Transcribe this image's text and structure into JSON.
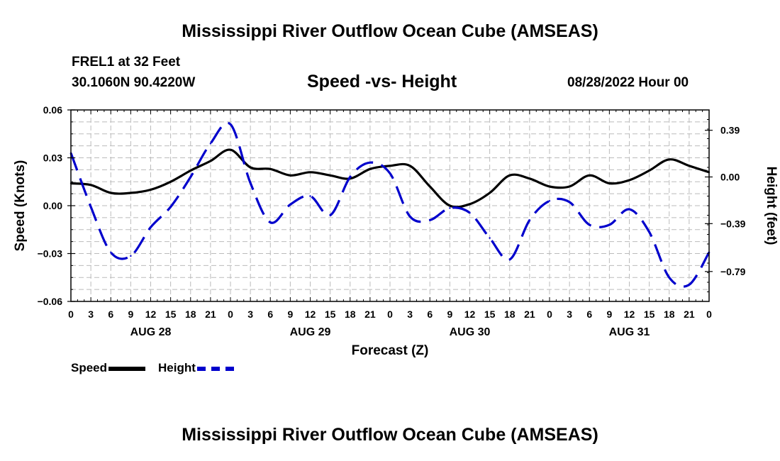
{
  "main_title": "Mississippi River Outflow Ocean Cube (AMSEAS)",
  "footer_title": "Mississippi River Outflow Ocean Cube (AMSEAS)",
  "station": "FREL1 at 32 Feet",
  "coordinates": "30.1060N  90.4220W",
  "subtitle": "Speed -vs- Height",
  "datestamp": "08/28/2022 Hour 00",
  "legend": {
    "speed_label": "Speed",
    "height_label": "Height"
  },
  "colors": {
    "speed": "#000000",
    "height": "#0000cc",
    "grid": "#bbbbbb"
  },
  "chart_data": {
    "type": "line",
    "title": "Speed -vs- Height",
    "xlabel": "Forecast (Z)",
    "ylabel": "Speed (Knots)",
    "y2label": "Height (feet)",
    "xlim": [
      0,
      96
    ],
    "ylim": [
      -0.06,
      0.06
    ],
    "y2lim": [
      -1.04,
      0.56
    ],
    "x_tick_values": [
      0,
      3,
      6,
      9,
      12,
      15,
      18,
      21,
      24,
      27,
      30,
      33,
      36,
      39,
      42,
      45,
      48,
      51,
      54,
      57,
      60,
      63,
      66,
      69,
      72,
      75,
      78,
      81,
      84,
      87,
      90,
      93,
      96
    ],
    "x_tick_labels": [
      "0",
      "3",
      "6",
      "9",
      "12",
      "15",
      "18",
      "21",
      "0",
      "3",
      "6",
      "9",
      "12",
      "15",
      "18",
      "21",
      "0",
      "3",
      "6",
      "9",
      "12",
      "15",
      "18",
      "21",
      "0",
      "3",
      "6",
      "9",
      "12",
      "15",
      "18",
      "21",
      "0"
    ],
    "day_labels": [
      {
        "label": "AUG 28",
        "x": 12
      },
      {
        "label": "AUG 29",
        "x": 36
      },
      {
        "label": "AUG 30",
        "x": 60
      },
      {
        "label": "AUG 31",
        "x": 84
      }
    ],
    "y_tick_values": [
      0.06,
      0.03,
      0.0,
      -0.03,
      -0.06
    ],
    "y_tick_labels": [
      "0.06",
      "0.03",
      "0.00",
      "−0.03",
      "−0.06"
    ],
    "y2_tick_values": [
      0.39,
      0.0,
      -0.39,
      -0.79
    ],
    "y2_tick_labels": [
      "0.39",
      "0.00",
      "−0.39",
      "−0.79"
    ],
    "series": [
      {
        "name": "Speed",
        "axis": "left",
        "style": "solid",
        "x": [
          0,
          3,
          6,
          9,
          12,
          15,
          18,
          21,
          24,
          27,
          30,
          33,
          36,
          39,
          42,
          45,
          48,
          51,
          54,
          57,
          60,
          63,
          66,
          69,
          72,
          75,
          78,
          81,
          84,
          87,
          90,
          93,
          96
        ],
        "values": [
          0.014,
          0.013,
          0.008,
          0.008,
          0.01,
          0.015,
          0.022,
          0.028,
          0.035,
          0.024,
          0.023,
          0.019,
          0.021,
          0.019,
          0.017,
          0.023,
          0.025,
          0.025,
          0.012,
          0.0,
          0.001,
          0.008,
          0.019,
          0.017,
          0.012,
          0.012,
          0.019,
          0.014,
          0.016,
          0.022,
          0.029,
          0.025,
          0.021
        ]
      },
      {
        "name": "Height",
        "axis": "right",
        "style": "dashed",
        "x": [
          0,
          3,
          6,
          9,
          12,
          15,
          18,
          21,
          24,
          27,
          30,
          33,
          36,
          39,
          42,
          45,
          48,
          51,
          54,
          57,
          60,
          63,
          66,
          69,
          72,
          75,
          78,
          81,
          84,
          87,
          90,
          93,
          96
        ],
        "values": [
          0.2,
          -0.25,
          -0.63,
          -0.66,
          -0.42,
          -0.25,
          0.0,
          0.28,
          0.44,
          -0.05,
          -0.38,
          -0.23,
          -0.16,
          -0.32,
          0.0,
          0.12,
          0.03,
          -0.33,
          -0.36,
          -0.26,
          -0.3,
          -0.51,
          -0.69,
          -0.36,
          -0.2,
          -0.21,
          -0.4,
          -0.4,
          -0.27,
          -0.46,
          -0.84,
          -0.9,
          -0.63
        ]
      }
    ]
  }
}
